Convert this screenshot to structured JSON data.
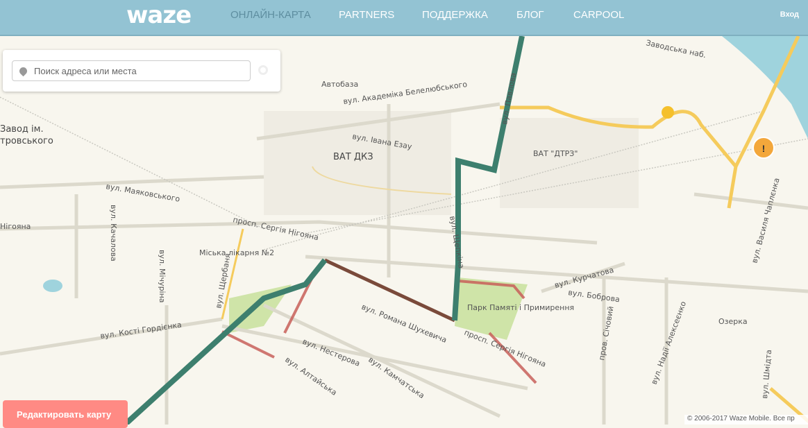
{
  "header": {
    "logo": "waze",
    "nav": [
      "ОНЛАЙН-КАРТА",
      "PARTNERS",
      "ПОДДЕРЖКА",
      "БЛОГ",
      "CARPOOL"
    ],
    "login": "Вход"
  },
  "search": {
    "placeholder": "Поиск адреса или места",
    "icon": "search-icon"
  },
  "edit_button": "Редактировать карту",
  "copyright": "© 2006-2017 Waze Mobile. Все пр",
  "colors": {
    "header": "#93c3d3",
    "jam": "#3d7f6e",
    "slow": "#c8605a",
    "highway": "#f5cb5c",
    "water": "#9fd3dd",
    "park": "#cfe4a8"
  },
  "map_labels": [
    "Заводська наб.",
    "Автобаза",
    "вул. Академіка Белелюбського",
    "вул. Павлова",
    "Завод ім.",
    "тровського",
    "вул. Івана Езау",
    "ВАТ ДКЗ",
    "ВАТ \"ДТРЗ\"",
    "вул. Маяковського",
    "Нігояна",
    "просп. Сергія Нігояна",
    "вул. Качалова",
    "вул. Мічуріна",
    "Міська лікарня №2",
    "вул. Щербаня",
    "вул. Щепкіна",
    "Парк Памяті і Примирення",
    "вул. Курчатова",
    "вул. Боброва",
    "вул. Романа Шухевича",
    "просп. Сергія Нігояна",
    "вул. Кості Гордієнка",
    "вул. Нестерова",
    "вул. Камчатська",
    "вул. Алтайська",
    "Озерка",
    "вул. Василя Чаплєнка",
    "вул. Надії Алексеєнко",
    "пров. Січовий",
    "вул. Шмідта"
  ]
}
